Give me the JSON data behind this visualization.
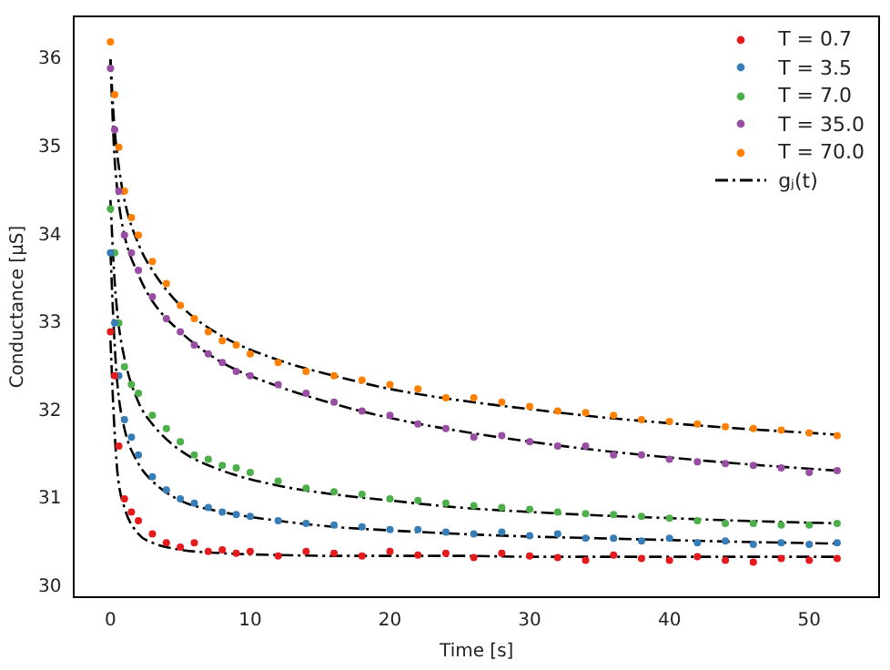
{
  "chart_data": {
    "type": "scatter",
    "xlabel": "Time [s]",
    "ylabel": "Conductance [μS]",
    "xlim": [
      -2.6,
      55
    ],
    "ylim": [
      29.88,
      36.49
    ],
    "xticks": [
      0,
      10,
      20,
      30,
      40,
      50
    ],
    "yticks": [
      30,
      31,
      32,
      33,
      34,
      35,
      36
    ],
    "legend": "top right",
    "marker": "circle",
    "x": [
      0,
      0.3,
      0.6,
      1,
      1.5,
      2,
      3,
      4,
      5,
      6,
      7,
      8,
      9,
      10,
      12,
      14,
      16,
      18,
      20,
      22,
      24,
      26,
      28,
      30,
      32,
      34,
      36,
      38,
      40,
      42,
      44,
      46,
      48,
      50,
      52
    ],
    "series": [
      {
        "name": "T = 0.7",
        "color": "#e41a1c",
        "values": [
          32.9,
          32.4,
          31.6,
          31.0,
          30.85,
          30.75,
          30.6,
          30.5,
          30.45,
          30.5,
          30.4,
          30.42,
          30.38,
          30.4,
          30.35,
          30.4,
          30.38,
          30.35,
          30.4,
          30.36,
          30.38,
          30.33,
          30.38,
          30.35,
          30.33,
          30.3,
          30.36,
          30.32,
          30.3,
          30.34,
          30.3,
          30.28,
          30.32,
          30.3,
          30.32
        ]
      },
      {
        "name": "T = 3.5",
        "color": "#377eb8",
        "values": [
          33.8,
          33.0,
          32.4,
          31.9,
          31.7,
          31.5,
          31.25,
          31.1,
          31.0,
          30.95,
          30.9,
          30.85,
          30.82,
          30.8,
          30.75,
          30.72,
          30.7,
          30.68,
          30.65,
          30.65,
          30.62,
          30.6,
          30.62,
          30.58,
          30.6,
          30.55,
          30.55,
          30.52,
          30.55,
          30.5,
          30.52,
          30.48,
          30.5,
          30.48,
          30.5
        ]
      },
      {
        "name": "T = 7.0",
        "color": "#4daf4a",
        "values": [
          34.3,
          33.8,
          33.0,
          32.5,
          32.3,
          32.2,
          31.95,
          31.8,
          31.65,
          31.5,
          31.45,
          31.38,
          31.35,
          31.3,
          31.2,
          31.12,
          31.08,
          31.05,
          31.0,
          30.98,
          30.95,
          30.92,
          30.9,
          30.88,
          30.85,
          30.83,
          30.82,
          30.8,
          30.78,
          30.75,
          30.72,
          30.72,
          30.7,
          30.7,
          30.72
        ]
      },
      {
        "name": "T = 35.0",
        "color": "#984ea3",
        "values": [
          35.9,
          35.2,
          34.5,
          34.0,
          33.8,
          33.6,
          33.3,
          33.05,
          32.9,
          32.75,
          32.65,
          32.55,
          32.45,
          32.4,
          32.3,
          32.2,
          32.1,
          32.0,
          31.95,
          31.85,
          31.8,
          31.7,
          31.72,
          31.65,
          31.6,
          31.6,
          31.5,
          31.5,
          31.45,
          31.42,
          31.4,
          31.38,
          31.35,
          31.3,
          31.32
        ]
      },
      {
        "name": "T = 70.0",
        "color": "#ff7f00",
        "values": [
          36.2,
          35.6,
          35.0,
          34.5,
          34.2,
          34.0,
          33.7,
          33.45,
          33.2,
          33.05,
          32.9,
          32.8,
          32.75,
          32.65,
          32.55,
          32.45,
          32.4,
          32.35,
          32.3,
          32.25,
          32.15,
          32.15,
          32.1,
          32.05,
          32.0,
          31.98,
          31.95,
          31.9,
          31.88,
          31.85,
          31.82,
          31.8,
          31.78,
          31.75,
          31.72
        ]
      },
      {
        "name": "gⱼ(t)",
        "type": "line",
        "color": "#000000",
        "marker": "none",
        "line_style": "dashed",
        "x": [
          0,
          0.25,
          0.5,
          1,
          2,
          3,
          5,
          8,
          12,
          16,
          20,
          25,
          30,
          35,
          40,
          45,
          52
        ],
        "values": [
          32.8,
          31.9,
          31.3,
          30.9,
          30.6,
          30.5,
          30.42,
          30.38,
          30.36,
          30.35,
          30.35,
          30.35,
          30.34,
          30.34,
          30.34,
          30.34,
          30.34
        ]
      },
      {
        "type": "line",
        "color": "#000000",
        "marker": "none",
        "line_style": "dashed",
        "x": [
          0,
          0.25,
          0.5,
          1,
          2,
          3,
          5,
          8,
          12,
          16,
          20,
          25,
          30,
          35,
          40,
          45,
          52
        ],
        "values": [
          33.8,
          32.9,
          32.3,
          31.8,
          31.4,
          31.2,
          30.98,
          30.85,
          30.75,
          30.68,
          30.64,
          30.6,
          30.57,
          30.55,
          30.53,
          30.51,
          30.49
        ]
      },
      {
        "type": "line",
        "color": "#000000",
        "marker": "none",
        "line_style": "dashed",
        "x": [
          0,
          0.25,
          0.5,
          1,
          2,
          3,
          5,
          8,
          12,
          16,
          20,
          25,
          30,
          35,
          40,
          45,
          52
        ],
        "values": [
          34.4,
          33.6,
          33.1,
          32.6,
          32.1,
          31.85,
          31.55,
          31.32,
          31.15,
          31.05,
          30.98,
          30.9,
          30.85,
          30.81,
          30.78,
          30.75,
          30.72
        ]
      },
      {
        "type": "line",
        "color": "#000000",
        "marker": "none",
        "line_style": "dashed",
        "x": [
          0,
          0.25,
          0.5,
          1,
          2,
          3,
          5,
          8,
          12,
          16,
          20,
          25,
          30,
          35,
          40,
          45,
          52
        ],
        "values": [
          36.0,
          35.0,
          34.5,
          34.0,
          33.55,
          33.25,
          32.9,
          32.55,
          32.28,
          32.08,
          31.92,
          31.77,
          31.65,
          31.55,
          31.47,
          31.4,
          31.32
        ]
      },
      {
        "type": "line",
        "color": "#000000",
        "marker": "none",
        "line_style": "dashed",
        "x": [
          0,
          0.25,
          0.5,
          1,
          2,
          3,
          5,
          8,
          12,
          16,
          20,
          25,
          30,
          35,
          40,
          45,
          52
        ],
        "values": [
          36.0,
          35.3,
          34.9,
          34.4,
          33.9,
          33.6,
          33.2,
          32.85,
          32.58,
          32.4,
          32.25,
          32.12,
          32.02,
          31.93,
          31.86,
          31.8,
          31.73
        ]
      }
    ]
  }
}
